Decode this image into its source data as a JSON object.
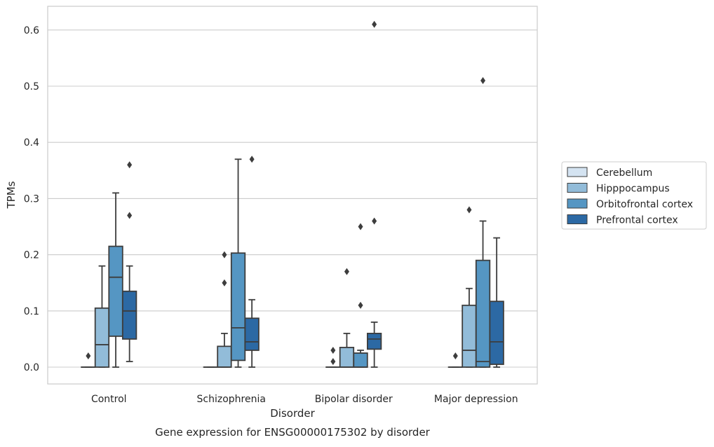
{
  "caption": "Gene expression for ENSG00000175302 by disorder",
  "chart_data": {
    "type": "box",
    "xlabel": "Disorder",
    "ylabel": "TPMs",
    "ylim": [
      -0.03,
      0.64
    ],
    "yticks": [
      0.0,
      0.1,
      0.2,
      0.3,
      0.4,
      0.5,
      0.6
    ],
    "ytick_labels": [
      "0.0",
      "0.1",
      "0.2",
      "0.3",
      "0.4",
      "0.5",
      "0.6"
    ],
    "grid": "horizontal",
    "legend_position": "right",
    "categories": [
      "Control",
      "Schizophrenia",
      "Bipolar disorder",
      "Major depression"
    ],
    "series": [
      {
        "name": "Cerebellum",
        "color": "#d4e3f1",
        "boxes": [
          {
            "q1": 0.0,
            "median": 0.0,
            "q3": 0.0,
            "whisker_low": 0.0,
            "whisker_high": 0.0,
            "outliers": [
              0.02
            ]
          },
          {
            "q1": 0.0,
            "median": 0.0,
            "q3": 0.0,
            "whisker_low": 0.0,
            "whisker_high": 0.0,
            "outliers": []
          },
          {
            "q1": 0.0,
            "median": 0.0,
            "q3": 0.0,
            "whisker_low": 0.0,
            "whisker_high": 0.0,
            "outliers": [
              0.01,
              0.03
            ]
          },
          {
            "q1": 0.0,
            "median": 0.0,
            "q3": 0.0,
            "whisker_low": 0.0,
            "whisker_high": 0.0,
            "outliers": [
              0.02
            ]
          }
        ]
      },
      {
        "name": "Hipppocampus",
        "color": "#92bcd9",
        "boxes": [
          {
            "q1": 0.0,
            "median": 0.04,
            "q3": 0.105,
            "whisker_low": 0.0,
            "whisker_high": 0.18,
            "outliers": []
          },
          {
            "q1": 0.0,
            "median": 0.0,
            "q3": 0.037,
            "whisker_low": 0.0,
            "whisker_high": 0.06,
            "outliers": [
              0.15,
              0.2
            ]
          },
          {
            "q1": 0.0,
            "median": 0.0,
            "q3": 0.035,
            "whisker_low": 0.0,
            "whisker_high": 0.06,
            "outliers": [
              0.17
            ]
          },
          {
            "q1": 0.0,
            "median": 0.03,
            "q3": 0.11,
            "whisker_low": 0.0,
            "whisker_high": 0.14,
            "outliers": [
              0.28
            ]
          }
        ]
      },
      {
        "name": "Orbitofrontal cortex",
        "color": "#5596c3",
        "boxes": [
          {
            "q1": 0.055,
            "median": 0.16,
            "q3": 0.215,
            "whisker_low": 0.0,
            "whisker_high": 0.31,
            "outliers": []
          },
          {
            "q1": 0.012,
            "median": 0.07,
            "q3": 0.203,
            "whisker_low": 0.0,
            "whisker_high": 0.37,
            "outliers": []
          },
          {
            "q1": 0.0,
            "median": 0.0,
            "q3": 0.025,
            "whisker_low": 0.0,
            "whisker_high": 0.03,
            "outliers": [
              0.11,
              0.25
            ]
          },
          {
            "q1": 0.0,
            "median": 0.01,
            "q3": 0.19,
            "whisker_low": 0.0,
            "whisker_high": 0.26,
            "outliers": [
              0.51
            ]
          }
        ]
      },
      {
        "name": "Prefrontal cortex",
        "color": "#2c69a4",
        "boxes": [
          {
            "q1": 0.05,
            "median": 0.1,
            "q3": 0.135,
            "whisker_low": 0.01,
            "whisker_high": 0.18,
            "outliers": [
              0.27,
              0.36
            ]
          },
          {
            "q1": 0.03,
            "median": 0.045,
            "q3": 0.087,
            "whisker_low": 0.0,
            "whisker_high": 0.12,
            "outliers": [
              0.37
            ]
          },
          {
            "q1": 0.032,
            "median": 0.05,
            "q3": 0.06,
            "whisker_low": 0.0,
            "whisker_high": 0.08,
            "outliers": [
              0.26,
              0.61
            ]
          },
          {
            "q1": 0.005,
            "median": 0.045,
            "q3": 0.117,
            "whisker_low": 0.0,
            "whisker_high": 0.23,
            "outliers": []
          }
        ]
      }
    ]
  }
}
